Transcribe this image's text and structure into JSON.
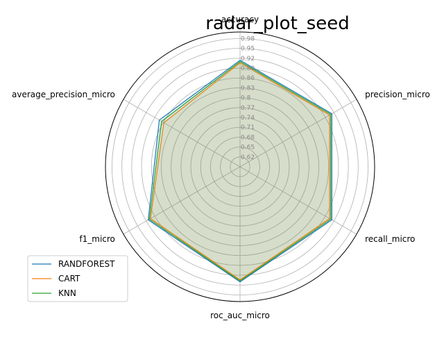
{
  "chart_data": {
    "type": "radar",
    "title": "radar_plot_seed",
    "axes": [
      "accuracy",
      "precision_micro",
      "recall_micro",
      "roc_auc_micro",
      "f1_micro",
      "average_precision_micro"
    ],
    "rticks": [
      "0.62",
      "0.65",
      "0.68",
      "0.71",
      "0.74",
      "0.77",
      "0.8",
      "0.83",
      "0.86",
      "0.89",
      "0.92",
      "0.95",
      "0.98"
    ],
    "rlim": [
      0.59,
      1.0
    ],
    "grid": true,
    "legend_position": "lower-left",
    "series": [
      {
        "name": "RANDFOREST",
        "color": "#1f77b4",
        "values": [
          0.914,
          0.913,
          0.913,
          0.94,
          0.913,
          0.874
        ]
      },
      {
        "name": "CART",
        "color": "#ff7f0e",
        "values": [
          0.906,
          0.905,
          0.905,
          0.934,
          0.905,
          0.858
        ]
      },
      {
        "name": "KNN",
        "color": "#2ca02c",
        "values": [
          0.91,
          0.909,
          0.909,
          0.937,
          0.909,
          0.866
        ]
      }
    ]
  }
}
